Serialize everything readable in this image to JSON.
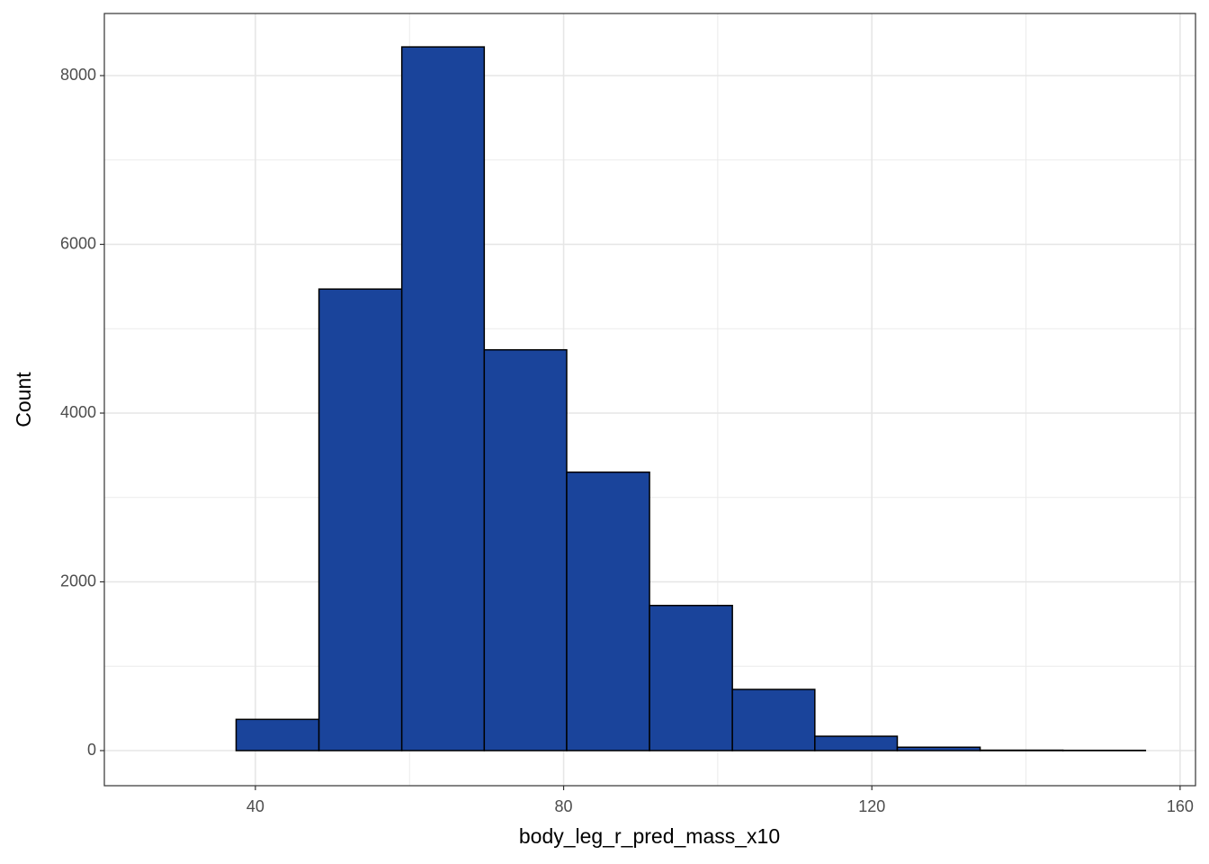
{
  "chart_data": {
    "type": "histogram",
    "x_label": "body_leg_r_pred_mass_x10",
    "y_label": "Count",
    "bins": [
      26.8,
      37.5,
      48.25,
      59.0,
      69.7,
      80.4,
      91.15,
      101.9,
      112.6,
      123.3,
      134.05,
      144.8,
      155.5
    ],
    "values": [
      0,
      370,
      5470,
      8340,
      4750,
      3300,
      1720,
      725,
      170,
      40,
      5,
      3
    ],
    "color": "#1a449b",
    "edge_color": "#000000",
    "xlim": [
      20.4,
      162.0
    ],
    "ylim": [
      -416,
      8736
    ],
    "xticks": [
      40,
      80,
      120,
      160
    ],
    "yticks": [
      0,
      2000,
      4000,
      6000,
      8000
    ],
    "x_minor_ticks": [
      60,
      100,
      140
    ],
    "y_minor_ticks": [
      1000,
      3000,
      5000,
      7000
    ],
    "grid": true
  }
}
